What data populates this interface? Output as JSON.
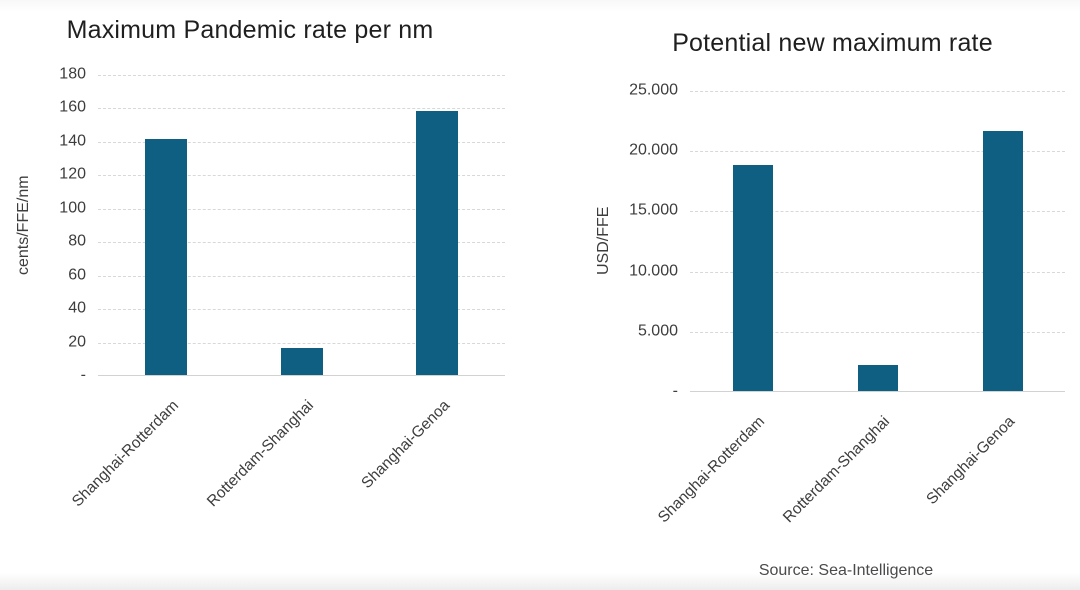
{
  "source": "Source: Sea-Intelligence",
  "colors": {
    "bar": "#0e5f82",
    "gridline": "#d8d8d8",
    "title": "#1f1f1f",
    "axis_text": "#3d3d3d",
    "source_text": "#4a4a4a"
  },
  "chart_data": [
    {
      "type": "bar",
      "title": "Maximum Pandemic rate per nm",
      "ylabel": "cents/FFE/nm",
      "xlabel": "",
      "categories": [
        "Shanghai-Rotterdam",
        "Rotterdam-Shanghai",
        "Shanghai-Genoa"
      ],
      "values": [
        141,
        16,
        158
      ],
      "ylim": [
        0,
        180
      ],
      "grid": true,
      "legend": "none",
      "yticks": [
        {
          "value": 180,
          "label": "180"
        },
        {
          "value": 160,
          "label": "160"
        },
        {
          "value": 140,
          "label": "140"
        },
        {
          "value": 120,
          "label": "120"
        },
        {
          "value": 100,
          "label": "100"
        },
        {
          "value": 80,
          "label": "80"
        },
        {
          "value": 60,
          "label": "60"
        },
        {
          "value": 40,
          "label": "40"
        },
        {
          "value": 20,
          "label": "20"
        },
        {
          "value": 0,
          "label": "-"
        }
      ]
    },
    {
      "type": "bar",
      "title": "Potential new maximum rate",
      "ylabel": "USD/FFE",
      "xlabel": "",
      "categories": [
        "Shanghai-Rotterdam",
        "Rotterdam-Shanghai",
        "Shanghai-Genoa"
      ],
      "values": [
        18800,
        2200,
        21600
      ],
      "ylim": [
        0,
        25000
      ],
      "grid": true,
      "legend": "none",
      "yticks": [
        {
          "value": 25000,
          "label": "25.000"
        },
        {
          "value": 20000,
          "label": "20.000"
        },
        {
          "value": 15000,
          "label": "15.000"
        },
        {
          "value": 10000,
          "label": "10.000"
        },
        {
          "value": 5000,
          "label": "5.000"
        },
        {
          "value": 0,
          "label": "-"
        }
      ]
    }
  ]
}
